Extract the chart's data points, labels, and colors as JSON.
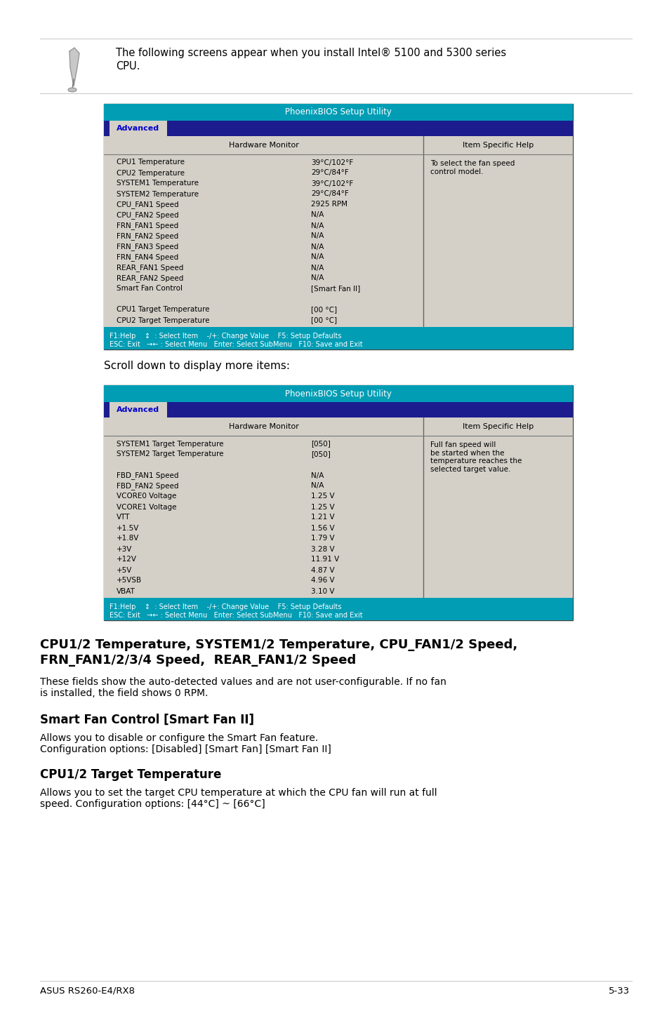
{
  "page_bg": "#ffffff",
  "note_line1": "The following screens appear when you install Intel® 5100 and 5300 series",
  "note_line2": "CPU.",
  "bios_title": "PhoenixBIOS Setup Utility",
  "bios_title_bg": "#009db5",
  "tab_bg": "#1c1c8f",
  "tab_text": "Advanced",
  "content_bg": "#d4d0c8",
  "header_left": "Hardware Monitor",
  "header_right": "Item Specific Help",
  "screen1_rows": [
    [
      "CPU1 Temperature",
      "39°C/102°F"
    ],
    [
      "CPU2 Temperature",
      "29°C/84°F"
    ],
    [
      "SYSTEM1 Temperature",
      "39°C/102°F"
    ],
    [
      "SYSTEM2 Temperature",
      "29°C/84°F"
    ],
    [
      "CPU_FAN1 Speed",
      "2925 RPM"
    ],
    [
      "CPU_FAN2 Speed",
      "N/A"
    ],
    [
      "FRN_FAN1 Speed",
      "N/A"
    ],
    [
      "FRN_FAN2 Speed",
      "N/A"
    ],
    [
      "FRN_FAN3 Speed",
      "N/A"
    ],
    [
      "FRN_FAN4 Speed",
      "N/A"
    ],
    [
      "REAR_FAN1 Speed",
      "N/A"
    ],
    [
      "REAR_FAN2 Speed",
      "N/A"
    ],
    [
      "Smart Fan Control",
      "[Smart Fan II]"
    ],
    [
      "",
      ""
    ],
    [
      "CPU1 Target Temperature",
      "[00 °C]"
    ],
    [
      "CPU2 Target Temperature",
      "[00 °C]"
    ]
  ],
  "screen1_help": "To select the fan speed\ncontrol model.",
  "screen2_rows": [
    [
      "SYSTEM1 Target Temperature",
      "[050]"
    ],
    [
      "SYSTEM2 Target Temperature",
      "[050]"
    ],
    [
      "",
      ""
    ],
    [
      "FBD_FAN1 Speed",
      "N/A"
    ],
    [
      "FBD_FAN2 Speed",
      "N/A"
    ],
    [
      "VCORE0 Voltage",
      "1.25 V"
    ],
    [
      "VCORE1 Voltage",
      "1.25 V"
    ],
    [
      "VTT",
      "1.21 V"
    ],
    [
      "+1.5V",
      "1.56 V"
    ],
    [
      "+1.8V",
      "1.79 V"
    ],
    [
      "+3V",
      "3.28 V"
    ],
    [
      "+12V",
      "11.91 V"
    ],
    [
      "+5V",
      "4.87 V"
    ],
    [
      "+5VSB",
      "4.96 V"
    ],
    [
      "VBAT",
      "3.10 V"
    ]
  ],
  "screen2_help": "Full fan speed will\nbe started when the\ntemperature reaches the\nselected target value.",
  "statusbar_line1": "F1:Help    ↕  : Select Item    -/+: Change Value    F5: Setup Defaults",
  "statusbar_line2": "ESC: Exit   →← : Select Menu   Enter: Select SubMenu   F10: Save and Exit",
  "scroll_text": "Scroll down to display more items:",
  "heading1_line1": "CPU1/2 Temperature, SYSTEM1/2 Temperature, CPU_FAN1/2 Speed,",
  "heading1_line2": "FRN_FAN1/2/3/4 Speed,  REAR_FAN1/2 Speed",
  "para1_line1": "These fields show the auto-detected values and are not user-configurable. If no fan",
  "para1_line2": "is installed, the field shows 0 RPM.",
  "heading2": "Smart Fan Control [Smart Fan II]",
  "para2_line1": "Allows you to disable or configure the Smart Fan feature.",
  "para2_line2": "Configuration options: [Disabled] [Smart Fan] [Smart Fan II]",
  "heading3": "CPU1/2 Target Temperature",
  "para3_line1": "Allows you to set the target CPU temperature at which the CPU fan will run at full",
  "para3_line2": "speed. Configuration options: [44°C] ~ [66°C]",
  "footer_left": "ASUS RS260-E4/RX8",
  "footer_right": "5-33"
}
